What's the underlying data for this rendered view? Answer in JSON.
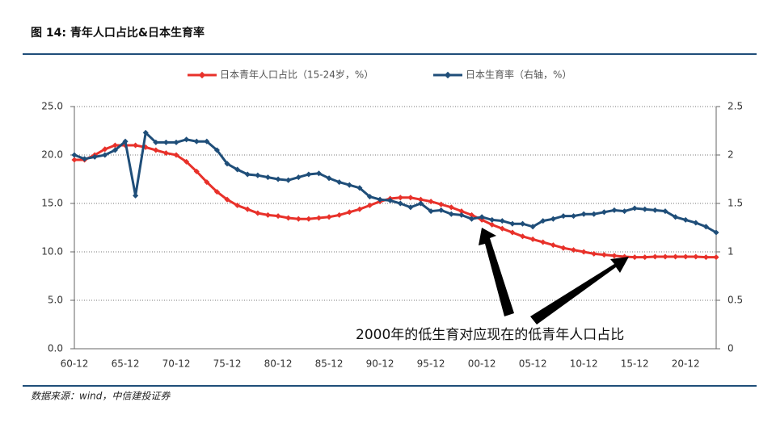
{
  "chart_data": {
    "type": "line",
    "title": "图 14: 青年人口占比&日本生育率",
    "source": "数据来源：wind，中信建投证券",
    "annotation": "2000年的低生育对应现在的低青年人口占比",
    "categories": [
      "60-12",
      null,
      null,
      null,
      null,
      "65-12",
      null,
      null,
      null,
      null,
      "70-12",
      null,
      null,
      null,
      null,
      "75-12",
      null,
      null,
      null,
      null,
      "80-12",
      null,
      null,
      null,
      null,
      "85-12",
      null,
      null,
      null,
      null,
      "90-12",
      null,
      null,
      null,
      null,
      "95-12",
      null,
      null,
      null,
      null,
      "00-12",
      null,
      null,
      null,
      null,
      "05-12",
      null,
      null,
      null,
      null,
      "10-12",
      null,
      null,
      null,
      null,
      "15-12",
      null,
      null,
      null,
      null,
      "20-12",
      null,
      null,
      null
    ],
    "series": [
      {
        "name": "日本青年人口占比（15-24岁，%）",
        "color": "#e8312a",
        "values": [
          19.5,
          19.5,
          20.0,
          20.6,
          21.0,
          21.0,
          21.0,
          20.8,
          20.5,
          20.2,
          20.0,
          19.3,
          18.3,
          17.2,
          16.2,
          15.4,
          14.8,
          14.4,
          14.0,
          13.8,
          13.7,
          13.5,
          13.4,
          13.4,
          13.5,
          13.6,
          13.8,
          14.1,
          14.4,
          14.8,
          15.2,
          15.5,
          15.6,
          15.6,
          15.4,
          15.2,
          14.9,
          14.6,
          14.2,
          13.8,
          13.3,
          12.8,
          12.4,
          12.0,
          11.6,
          11.3,
          11.0,
          10.7,
          10.4,
          10.2,
          10.0,
          9.8,
          9.7,
          9.6,
          9.5,
          9.45,
          9.45,
          9.5,
          9.5,
          9.5,
          9.5,
          9.5,
          9.45,
          9.45
        ]
      },
      {
        "name": "日本生育率（右轴，%）",
        "color": "#1f4e79",
        "axis": "y2",
        "values": [
          2.0,
          1.96,
          1.98,
          2.0,
          2.05,
          2.14,
          1.58,
          2.23,
          2.13,
          2.13,
          2.13,
          2.16,
          2.14,
          2.14,
          2.05,
          1.91,
          1.85,
          1.8,
          1.79,
          1.77,
          1.75,
          1.74,
          1.77,
          1.8,
          1.81,
          1.76,
          1.72,
          1.69,
          1.66,
          1.57,
          1.54,
          1.53,
          1.5,
          1.46,
          1.5,
          1.42,
          1.43,
          1.39,
          1.38,
          1.34,
          1.36,
          1.33,
          1.32,
          1.29,
          1.29,
          1.26,
          1.32,
          1.34,
          1.37,
          1.37,
          1.39,
          1.39,
          1.41,
          1.43,
          1.42,
          1.45,
          1.44,
          1.43,
          1.42,
          1.36,
          1.33,
          1.3,
          1.26,
          1.2
        ]
      }
    ],
    "ylim": [
      0,
      25
    ],
    "yticks": [
      {
        "value": 0,
        "label": "0.0"
      },
      {
        "value": 5,
        "label": "5.0"
      },
      {
        "value": 10,
        "label": "10.0"
      },
      {
        "value": 15,
        "label": "15.0"
      },
      {
        "value": 20,
        "label": "20.0"
      },
      {
        "value": 25,
        "label": "25.0"
      }
    ],
    "y2lim": [
      0,
      2.5
    ],
    "y2ticks": [
      0,
      0.5,
      1,
      1.5,
      2,
      2.5
    ],
    "grid": true,
    "legend": "top"
  }
}
